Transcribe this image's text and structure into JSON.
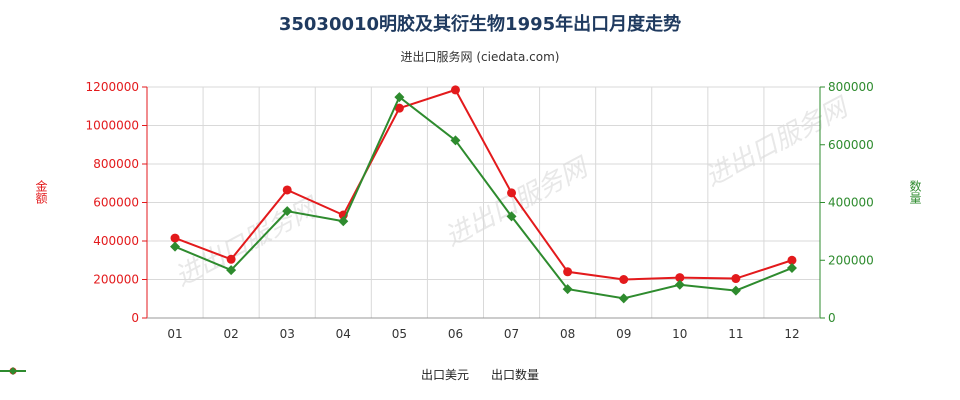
{
  "chart_data": {
    "type": "line",
    "title": "35030010明胶及其衍生物1995年出口月度走势",
    "subtitle": "进出口服务网 (ciedata.com)",
    "watermark": "进出口服务网",
    "categories": [
      "01",
      "02",
      "03",
      "04",
      "05",
      "06",
      "07",
      "08",
      "09",
      "10",
      "11",
      "12"
    ],
    "y_left": {
      "label": "金额",
      "ylim": [
        0,
        1200000
      ],
      "ticks": [
        0,
        200000,
        400000,
        600000,
        800000,
        1000000,
        1200000
      ],
      "color": "#e31a1c"
    },
    "y_right": {
      "label": "数量",
      "ylim": [
        0,
        800000
      ],
      "ticks": [
        0,
        200000,
        400000,
        600000,
        800000
      ],
      "color": "#2e8b2e"
    },
    "grid": true,
    "legend_position": "bottom",
    "series": [
      {
        "name": "出口美元",
        "axis": "left",
        "color": "#e31a1c",
        "marker": "circle",
        "values": [
          415000,
          305000,
          665000,
          535000,
          1090000,
          1185000,
          650000,
          240000,
          200000,
          210000,
          205000,
          300000
        ]
      },
      {
        "name": "出口数量",
        "axis": "right",
        "color": "#2e8b2e",
        "marker": "diamond",
        "values": [
          247000,
          166000,
          370000,
          335000,
          765000,
          615000,
          352000,
          100000,
          68000,
          115000,
          95000,
          173000
        ]
      }
    ]
  }
}
